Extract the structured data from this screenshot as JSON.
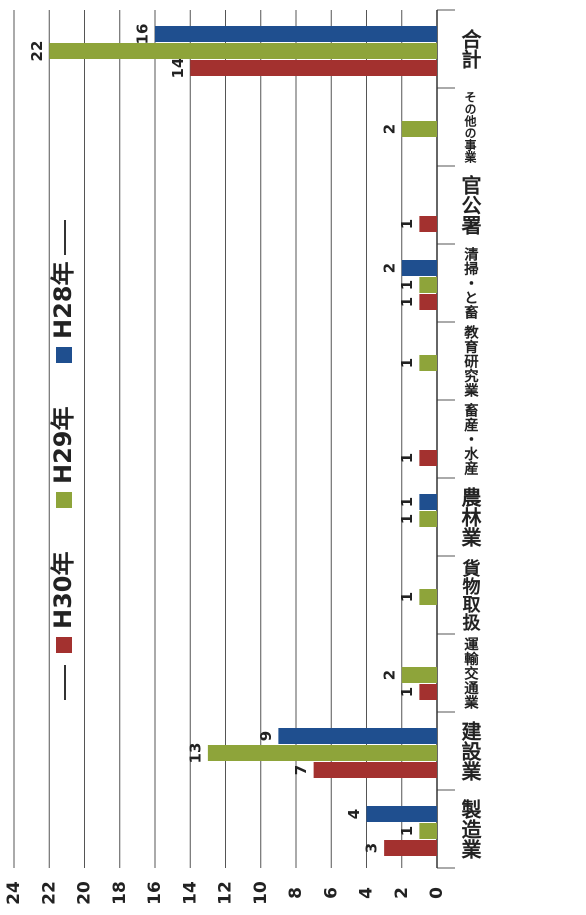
{
  "chart_data": {
    "type": "bar",
    "orientation": "horizontal",
    "categories": [
      "製造業",
      "建設業",
      "運輸交通業",
      "貨物取扱",
      "農林業",
      "畜産・水産",
      "教育研究業",
      "清掃・と畜",
      "官公署",
      "その他の事業",
      "合計"
    ],
    "series": [
      {
        "name": "H30年",
        "color": "#a3312f",
        "values": [
          3,
          7,
          1,
          null,
          null,
          1,
          null,
          1,
          1,
          null,
          14
        ]
      },
      {
        "name": "H29年",
        "color": "#8ea43a",
        "values": [
          1,
          13,
          2,
          1,
          1,
          null,
          1,
          1,
          null,
          2,
          22
        ]
      },
      {
        "name": "H28年",
        "color": "#1f4f8f",
        "values": [
          4,
          9,
          null,
          null,
          1,
          null,
          null,
          2,
          null,
          null,
          16
        ]
      }
    ],
    "xlim": [
      0,
      24
    ],
    "xticks": [
      0,
      2,
      4,
      6,
      8,
      10,
      12,
      14,
      16,
      18,
      20,
      22,
      24
    ],
    "grid": true
  }
}
